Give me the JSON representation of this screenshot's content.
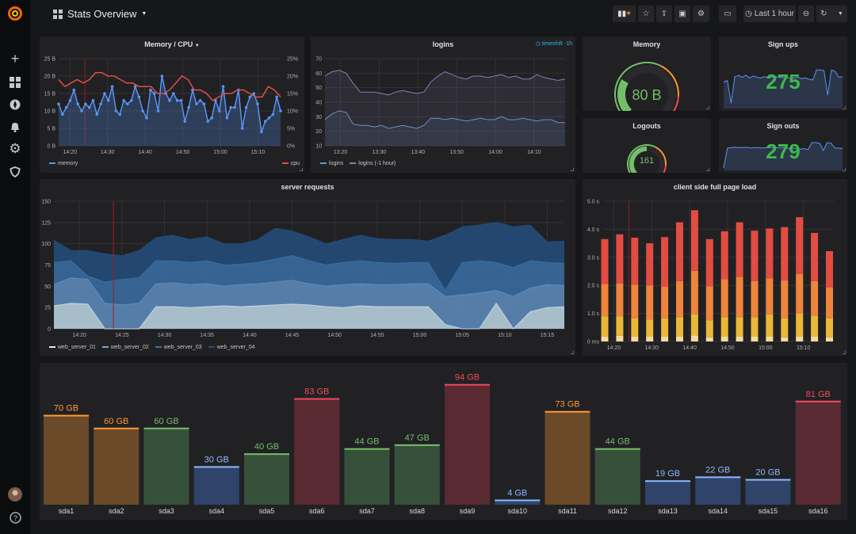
{
  "sidebar": {
    "items": [
      {
        "icon": "grafana-logo-icon"
      },
      {
        "icon": "plus-icon",
        "label": "Create"
      },
      {
        "icon": "dashboards-icon",
        "label": "Dashboards"
      },
      {
        "icon": "explore-compass-icon",
        "label": "Explore"
      },
      {
        "icon": "alerting-bell-icon",
        "label": "Alerting"
      },
      {
        "icon": "configuration-gear-icon",
        "label": "Configuration"
      },
      {
        "icon": "server-admin-shield-icon",
        "label": "Server Admin"
      },
      {
        "icon": "user-avatar-icon"
      },
      {
        "icon": "help-icon",
        "glyph": "?"
      }
    ]
  },
  "header": {
    "title": "Stats Overview",
    "time_range": "Last 1 hour",
    "buttons": [
      "add-panel",
      "star",
      "share",
      "save",
      "settings",
      "cycle-view-mode",
      "zoom-out",
      "refresh",
      "refresh-interval"
    ]
  },
  "colors": {
    "green": "#73bf69",
    "orange": "#ff9830",
    "red": "#f2495c",
    "blue": "#8ab8ff",
    "memory": "#5794f2",
    "cpu": "#e24d42"
  },
  "panels": {
    "memory_cpu": {
      "title": "Memory / CPU",
      "legend": [
        "memory",
        "cpu"
      ]
    },
    "logins": {
      "title": "logins",
      "timeshift": "timeshift -1h",
      "legend": [
        "logins",
        "logins (-1 hour)"
      ]
    },
    "memory_gauge": {
      "title": "Memory",
      "value": "80 B",
      "fill_fraction": 0.28
    },
    "signups": {
      "title": "Sign ups",
      "value": "275"
    },
    "logouts": {
      "title": "Logouts",
      "value": "161",
      "fill_fraction": 0.5
    },
    "signouts": {
      "title": "Sign outs",
      "value": "279"
    },
    "server_requests": {
      "title": "server requests",
      "legend": [
        "web_server_01",
        "web_server_02",
        "web_server_03",
        "web_server_04"
      ]
    },
    "page_load": {
      "title": "client side full page load"
    }
  },
  "chart_data": [
    {
      "id": "memory_cpu",
      "type": "line",
      "x_range": [
        "14:17",
        "15:16"
      ],
      "x_ticks": [
        "14:20",
        "14:30",
        "14:40",
        "14:50",
        "15:00",
        "15:10"
      ],
      "y_ticks_left": [
        "0 B",
        "5 B",
        "10 B",
        "15 B",
        "20 B",
        "25 B"
      ],
      "ylim_left": [
        0,
        25
      ],
      "y_ticks_right": [
        "0%",
        "5%",
        "10%",
        "15%",
        "20%",
        "25%"
      ],
      "ylim_right": [
        0,
        25
      ],
      "grid": true,
      "legend": "bottom",
      "series": [
        {
          "name": "memory",
          "axis": "left",
          "fill": true,
          "points": true,
          "values": [
            12,
            9,
            11,
            13,
            16,
            12,
            10,
            12,
            11,
            13,
            9,
            12,
            15,
            13,
            17,
            10,
            9,
            13,
            12,
            13,
            17,
            14,
            10,
            8,
            16,
            15,
            10,
            20,
            15,
            13,
            15,
            13,
            13,
            7,
            11,
            16,
            12,
            13,
            12,
            7,
            8,
            13,
            10,
            17,
            8,
            11,
            11,
            16,
            5,
            11,
            14,
            15,
            12,
            4,
            7,
            8,
            9,
            14,
            10
          ]
        },
        {
          "name": "cpu",
          "axis": "right",
          "values": [
            19,
            17,
            18,
            19,
            18,
            19,
            21,
            21,
            20,
            20,
            19,
            18,
            18,
            17,
            17,
            17,
            15,
            15,
            16,
            18,
            20,
            19,
            16,
            16,
            15,
            13,
            14,
            15,
            15,
            16,
            16,
            15,
            14,
            14,
            17,
            16,
            14
          ]
        }
      ]
    },
    {
      "id": "logins",
      "type": "line",
      "x_range": [
        "13:16",
        "14:18"
      ],
      "x_ticks": [
        "13:20",
        "13:30",
        "13:40",
        "13:50",
        "14:00",
        "14:10"
      ],
      "y_ticks": [
        "10",
        "20",
        "30",
        "40",
        "50",
        "60",
        "70"
      ],
      "ylim": [
        10,
        70
      ],
      "grid": true,
      "legend": "bottom",
      "series": [
        {
          "name": "logins",
          "values": [
            28,
            32,
            34,
            33,
            25,
            24,
            24,
            23,
            24,
            22,
            23,
            24,
            23,
            22,
            24,
            29,
            29,
            28,
            29,
            28,
            27,
            28,
            29,
            28,
            28,
            30,
            28,
            28,
            29,
            28,
            27,
            28,
            28,
            26,
            26
          ]
        },
        {
          "name": "logins (-1 hour)",
          "values": [
            58,
            61,
            62,
            60,
            53,
            47,
            47,
            47,
            46,
            45,
            47,
            48,
            47,
            46,
            47,
            54,
            58,
            61,
            59,
            57,
            56,
            58,
            58,
            57,
            58,
            59,
            57,
            58,
            56,
            56,
            59,
            57,
            56,
            55,
            56
          ]
        }
      ]
    },
    {
      "id": "server_requests",
      "type": "area",
      "stacked": true,
      "x_range": [
        "14:17",
        "15:17"
      ],
      "x_ticks": [
        "14:20",
        "14:25",
        "14:30",
        "14:35",
        "14:40",
        "14:45",
        "14:50",
        "14:55",
        "15:00",
        "15:05",
        "15:10",
        "15:15"
      ],
      "y_ticks": [
        "0",
        "25",
        "50",
        "75",
        "100",
        "125",
        "150"
      ],
      "ylim": [
        0,
        150
      ],
      "grid": true,
      "legend": "bottom",
      "series": [
        {
          "name": "web_server_01",
          "color": "#c0d8e8",
          "values": [
            27,
            30,
            29,
            0,
            0,
            0,
            26,
            26,
            25,
            26,
            27,
            26,
            27,
            28,
            29,
            28,
            26,
            25,
            27,
            26,
            26,
            26,
            26,
            5,
            0,
            0,
            30,
            0,
            20,
            25,
            26
          ]
        },
        {
          "name": "web_server_02",
          "color": "#5f8dbf",
          "values": [
            25,
            30,
            29,
            30,
            28,
            30,
            27,
            28,
            27,
            27,
            23,
            26,
            26,
            27,
            28,
            25,
            24,
            27,
            26,
            26,
            26,
            27,
            27,
            33,
            40,
            42,
            15,
            38,
            28,
            27,
            25
          ]
        },
        {
          "name": "web_server_03",
          "color": "#3a6fa6",
          "values": [
            26,
            20,
            4,
            25,
            30,
            30,
            27,
            26,
            26,
            27,
            25,
            24,
            25,
            27,
            29,
            27,
            25,
            26,
            27,
            26,
            25,
            25,
            25,
            7,
            38,
            38,
            33,
            34,
            32,
            26,
            26
          ]
        },
        {
          "name": "web_server_04",
          "color": "#234d7c",
          "values": [
            26,
            12,
            30,
            33,
            28,
            32,
            27,
            30,
            27,
            28,
            25,
            24,
            27,
            36,
            29,
            28,
            25,
            27,
            30,
            28,
            28,
            27,
            25,
            65,
            42,
            42,
            47,
            48,
            42,
            24,
            26
          ]
        }
      ]
    },
    {
      "id": "page_load",
      "type": "bar",
      "stacked": true,
      "x_range": [
        "14:17",
        "15:18"
      ],
      "x_ticks": [
        "14:20",
        "14:30",
        "14:40",
        "14:50",
        "15:00",
        "15:10"
      ],
      "y_ticks": [
        "0 ms",
        "1.0 s",
        "2.0 s",
        "3.0 s",
        "4.0 s",
        "5.0 s"
      ],
      "ylim": [
        0,
        5
      ],
      "grid": true,
      "series": [
        {
          "color": "#f8d9a0",
          "values": [
            0.18,
            0.2,
            0.17,
            0.17,
            0.18,
            0.18,
            0.22,
            0.15,
            0.18,
            0.18,
            0.17,
            0.17,
            0.15,
            0.18,
            0.18,
            0.15
          ]
        },
        {
          "color": "#eab839",
          "values": [
            0.72,
            0.7,
            0.65,
            0.61,
            0.64,
            0.69,
            0.76,
            0.6,
            0.69,
            0.69,
            0.7,
            0.8,
            0.68,
            0.82,
            0.74,
            0.68
          ]
        },
        {
          "color": "#ef843c",
          "values": [
            1.15,
            1.17,
            1.21,
            1.22,
            1.13,
            1.28,
            1.54,
            1.22,
            1.35,
            1.43,
            1.28,
            1.28,
            1.35,
            1.4,
            1.23,
            1.09
          ]
        },
        {
          "color": "#e24d42",
          "values": [
            1.6,
            1.75,
            1.67,
            1.5,
            1.77,
            2.1,
            2.16,
            1.68,
            1.71,
            1.95,
            1.8,
            1.78,
            1.9,
            2.03,
            1.72,
            1.3
          ]
        }
      ]
    },
    {
      "id": "signups_spark",
      "type": "area",
      "values": [
        40,
        42,
        8,
        48,
        50,
        47,
        50,
        46,
        49,
        47,
        46,
        48,
        46,
        47,
        48,
        47,
        46,
        47,
        45,
        46,
        47,
        45,
        46,
        44,
        43,
        58,
        58,
        57,
        20,
        58,
        56,
        47,
        48
      ]
    },
    {
      "id": "signouts_spark",
      "type": "area",
      "values": [
        5,
        45,
        46,
        47,
        46,
        46,
        47,
        45,
        46,
        46,
        45,
        46,
        47,
        45,
        46,
        45,
        46,
        44,
        45,
        44,
        43,
        44,
        42,
        56,
        56,
        55,
        40,
        56,
        55,
        45,
        45,
        44
      ]
    },
    {
      "id": "disk_usage",
      "type": "bar",
      "unit": "GB",
      "ylim": [
        0,
        100
      ],
      "categories": [
        "sda1",
        "sda2",
        "sda3",
        "sda4",
        "sda5",
        "sda6",
        "sda7",
        "sda8",
        "sda9",
        "sda10",
        "sda11",
        "sda12",
        "sda13",
        "sda14",
        "sda15",
        "sda16"
      ],
      "values": [
        70,
        60,
        60,
        30,
        40,
        83,
        44,
        47,
        94,
        4,
        73,
        44,
        19,
        22,
        20,
        81
      ],
      "labels": [
        "70 GB",
        "60 GB",
        "60 GB",
        "30 GB",
        "40 GB",
        "83 GB",
        "44 GB",
        "47 GB",
        "94 GB",
        "4 GB",
        "73 GB",
        "44 GB",
        "19 GB",
        "22 GB",
        "20 GB",
        "81 GB"
      ],
      "color_levels": [
        "orange",
        "orange",
        "green",
        "blue",
        "green",
        "red",
        "green",
        "green",
        "red",
        "blue",
        "orange",
        "green",
        "blue",
        "blue",
        "blue",
        "red"
      ]
    }
  ]
}
